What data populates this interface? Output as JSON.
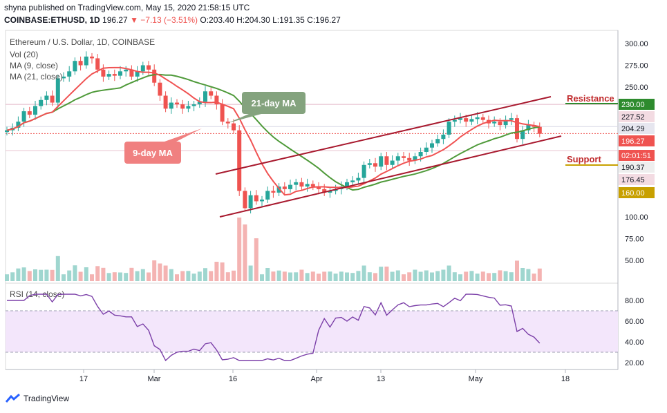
{
  "header": {
    "line1": "shyna published on TradingView.com, May 15, 2020 21:58:15 UTC",
    "symbol": "COINBASE:ETHUSD, 1D",
    "price": "196.27",
    "change": "▼ −7.13 (−3.51%)",
    "ohlc": "O:203.40 H:204.30 L:191.35 C:196.27"
  },
  "pane_title": "Ethereum / U.S. Dollar, 1D, COINBASE",
  "indicators": {
    "vol": "Vol (20)",
    "ma9": "MA (9, close)",
    "ma21": "MA (21, close)"
  },
  "footer": {
    "brand": "TradingView"
  },
  "colors": {
    "up": "#26a69a",
    "down": "#ef5350",
    "ma9": "#f05252",
    "ma21": "#4f9a3a",
    "channel": "#a8192e",
    "rsi": "#7b3fa8",
    "rsi_band": "#f3e6fb"
  },
  "chart_data": [
    {
      "type": "candlestick",
      "title": "Ethereum / U.S. Dollar, 1D, COINBASE",
      "y_ticks": [
        "300.00",
        "275.00",
        "250.00",
        "100.00",
        "75.00",
        "50.00"
      ],
      "x_ticks": [
        "17",
        "Mar",
        "16",
        "Apr",
        "13",
        "May",
        "18"
      ],
      "price_labels": [
        {
          "text": "230.00",
          "value": 230,
          "bg": "#2e8b2e",
          "fg": "#ffffff"
        },
        {
          "text": "227.52",
          "value": 227.52,
          "bg": "#f3dbe2",
          "fg": "#131722"
        },
        {
          "text": "204.29",
          "value": 204.29,
          "bg": "#e6e6ef",
          "fg": "#131722"
        },
        {
          "text": "196.27",
          "value": 196.27,
          "bg": "#ef5350",
          "fg": "#ffffff"
        },
        {
          "text": "02:01:51",
          "value": 185.5,
          "bg": "#ef5350",
          "fg": "#ffffff"
        },
        {
          "text": "190.37",
          "value": 190.37,
          "bg": "#eeeeee",
          "fg": "#131722"
        },
        {
          "text": "176.45",
          "value": 176.45,
          "bg": "#f3dbe2",
          "fg": "#131722"
        },
        {
          "text": "160.00",
          "value": 160,
          "bg": "#c8a000",
          "fg": "#ffffff"
        }
      ],
      "annotations": {
        "resistance": "Resistance",
        "support": "Support",
        "ma21_callout": "21-day MA",
        "ma9_callout": "9-day MA"
      },
      "candles_approx": [
        [
          198,
          200
        ],
        [
          200,
          203
        ],
        [
          203,
          210
        ],
        [
          210,
          222
        ],
        [
          222,
          218
        ],
        [
          218,
          228
        ],
        [
          228,
          235
        ],
        [
          235,
          240
        ],
        [
          240,
          232
        ],
        [
          232,
          260
        ],
        [
          260,
          262
        ],
        [
          262,
          268
        ],
        [
          268,
          280
        ],
        [
          280,
          275
        ],
        [
          275,
          285
        ],
        [
          285,
          283
        ],
        [
          283,
          270
        ],
        [
          270,
          262
        ],
        [
          262,
          265
        ],
        [
          265,
          263
        ],
        [
          263,
          268
        ],
        [
          268,
          270
        ],
        [
          270,
          262
        ],
        [
          262,
          268
        ],
        [
          268,
          275
        ],
        [
          275,
          270
        ],
        [
          270,
          255
        ],
        [
          255,
          240
        ],
        [
          240,
          225
        ],
        [
          225,
          232
        ],
        [
          232,
          230
        ],
        [
          230,
          225
        ],
        [
          225,
          228
        ],
        [
          228,
          230
        ],
        [
          230,
          233
        ],
        [
          233,
          245
        ],
        [
          245,
          240
        ],
        [
          240,
          230
        ],
        [
          230,
          210
        ],
        [
          210,
          208
        ],
        [
          208,
          200
        ],
        [
          200,
          130
        ],
        [
          130,
          110
        ],
        [
          110,
          125
        ],
        [
          125,
          118
        ],
        [
          118,
          120
        ],
        [
          120,
          130
        ],
        [
          130,
          128
        ],
        [
          128,
          135
        ],
        [
          135,
          132
        ],
        [
          132,
          137
        ],
        [
          137,
          140
        ],
        [
          140,
          135
        ],
        [
          135,
          138
        ],
        [
          138,
          135
        ],
        [
          135,
          132
        ],
        [
          132,
          128
        ],
        [
          128,
          130
        ],
        [
          130,
          132
        ],
        [
          132,
          135
        ],
        [
          135,
          140
        ],
        [
          140,
          142
        ],
        [
          142,
          145
        ],
        [
          145,
          160
        ],
        [
          160,
          162
        ],
        [
          162,
          158
        ],
        [
          158,
          170
        ],
        [
          170,
          160
        ],
        [
          160,
          165
        ],
        [
          165,
          170
        ],
        [
          170,
          168
        ],
        [
          168,
          165
        ],
        [
          165,
          170
        ],
        [
          170,
          175
        ],
        [
          175,
          180
        ],
        [
          180,
          185
        ],
        [
          185,
          190
        ],
        [
          190,
          195
        ],
        [
          195,
          210
        ],
        [
          210,
          212
        ],
        [
          212,
          214
        ],
        [
          214,
          210
        ],
        [
          210,
          213
        ],
        [
          213,
          215
        ],
        [
          215,
          212
        ],
        [
          212,
          208
        ],
        [
          208,
          210
        ],
        [
          210,
          206
        ],
        [
          206,
          212
        ],
        [
          212,
          214
        ],
        [
          214,
          190
        ],
        [
          190,
          200
        ],
        [
          200,
          206
        ],
        [
          206,
          204
        ],
        [
          204,
          196
        ]
      ]
    },
    {
      "type": "line",
      "title": "RSI (14, close)",
      "y_ticks": [
        "80.00",
        "60.00",
        "40.00",
        "20.00"
      ],
      "band": [
        30,
        70
      ]
    }
  ]
}
